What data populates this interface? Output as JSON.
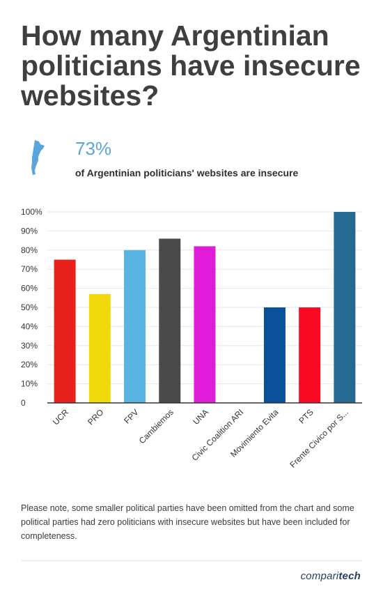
{
  "page": {
    "title": "How many Argentinian politicians have insecure websites?",
    "stat_value": "73%",
    "stat_text": "of Argentinian politicians' websites are insecure",
    "note": "Please note, some smaller political parties have been omitted from the chart and some political parties had zero politicians with insecure websites but have been included for completeness.",
    "brand_prefix": "compari",
    "brand_suffix": "tech",
    "icon": "argentina-map-icon",
    "accent_color": "#5aa6db",
    "brand_color": "#273e60"
  },
  "chart_data": {
    "type": "bar",
    "title": "",
    "xlabel": "",
    "ylabel": "",
    "ylim": [
      0,
      100
    ],
    "yticks": [
      "0",
      "10%",
      "20%",
      "30%",
      "40%",
      "50%",
      "60%",
      "70%",
      "80%",
      "90%",
      "100%"
    ],
    "grid": true,
    "categories": [
      "UCR",
      "PRO",
      "FPV",
      "Cambiemos",
      "UNA",
      "Civic Coalition ARI",
      "Movimiento Evita",
      "PTS",
      "Frente Civico por S..."
    ],
    "values": [
      75,
      57,
      80,
      86,
      82,
      0,
      50,
      50,
      100
    ],
    "colors": [
      "#e8211c",
      "#f0d80b",
      "#5ab4e3",
      "#4a4a4a",
      "#e01cd9",
      "#cccccc",
      "#0a519b",
      "#fa0a23",
      "#236990"
    ]
  }
}
